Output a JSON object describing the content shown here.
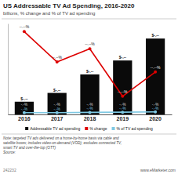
{
  "chart_data": {
    "type": "bar",
    "title": "US Addressable TV Ad Spending, 2016-2020",
    "subtitle": "billions, % change and % of TV ad spending",
    "categories": [
      "2016",
      "2017",
      "2018",
      "2019",
      "2020"
    ],
    "series": [
      {
        "name": "Addressable TV ad spending",
        "type": "bar",
        "color": "#0a0a0a",
        "values": [
          1.26,
          2.13,
          3.96,
          5.34,
          7.51
        ],
        "value_labels": [
          "$-.--",
          "$-.--",
          "$-.--",
          "$-.--",
          "$-.--"
        ],
        "inner_labels": [
          "-.-% ",
          "-.-% ",
          "-.-% ",
          "-.-% ",
          "-.-% "
        ]
      },
      {
        "name": "% change",
        "type": "line",
        "color": "#dd0000",
        "marker": "o",
        "values": [
          8.2,
          5.2,
          6.5,
          1.8,
          4.2
        ],
        "value_labels": [
          "--.--%",
          "--.--%",
          "--.--%",
          "--.--%",
          "--.--%"
        ]
      },
      {
        "name": "% of TV ad spending",
        "type": "line",
        "color": "#7ec8e3",
        "marker": "o",
        "values": [
          0.18,
          0.18,
          0.2,
          0.22,
          0.25
        ],
        "value_labels": [
          "-.-% ",
          "-.-% ",
          "-.-% ",
          "-.-% ",
          "-.-% "
        ]
      }
    ],
    "ylim": [
      0,
      9.0
    ],
    "yticks": [],
    "tick_labels": "x",
    "grid": false,
    "legend": "bottom",
    "data_labels": true,
    "annotations": [
      "Note: targeted TV ads delivered on a home-by-home basis via cable and\nsatellite boxes; includes video-on-demand (VOD); excludes connected TV,\nsmart TV and over-the-top (OTT)\nSource:",
      "www.eMarketer.com",
      "242232"
    ]
  }
}
